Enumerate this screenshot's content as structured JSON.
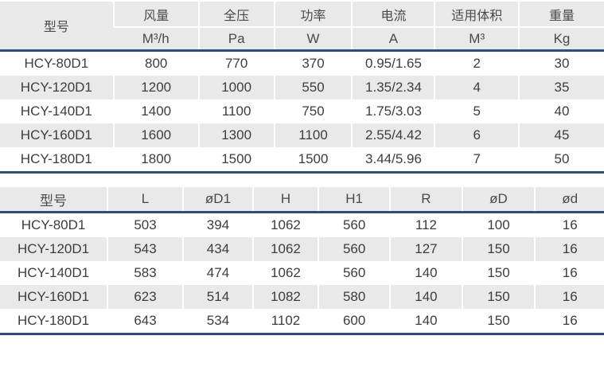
{
  "theme": {
    "accent_line_color": "#2c4e78",
    "header_background": "#e9e9e9",
    "stripe_background": "#e9e9e9",
    "text_color": "#3d3d3d"
  },
  "performance_table": {
    "columns": [
      {
        "label": "型号",
        "unit": null
      },
      {
        "label": "风量",
        "unit": "M³/h"
      },
      {
        "label": "全压",
        "unit": "Pa"
      },
      {
        "label": "功率",
        "unit": "W"
      },
      {
        "label": "电流",
        "unit": "A"
      },
      {
        "label": "适用体积",
        "unit": "M³"
      },
      {
        "label": "重量",
        "unit": "Kg"
      }
    ],
    "rows": [
      [
        "HCY-80D1",
        "800",
        "770",
        "370",
        "0.95/1.65",
        "2",
        "30"
      ],
      [
        "HCY-120D1",
        "1200",
        "1000",
        "550",
        "1.35/2.34",
        "4",
        "35"
      ],
      [
        "HCY-140D1",
        "1400",
        "1100",
        "750",
        "1.75/3.03",
        "5",
        "40"
      ],
      [
        "HCY-160D1",
        "1600",
        "1300",
        "1100",
        "2.55/4.42",
        "6",
        "45"
      ],
      [
        "HCY-180D1",
        "1800",
        "1500",
        "1500",
        "3.44/5.96",
        "7",
        "50"
      ]
    ]
  },
  "dimension_table": {
    "columns": [
      "型号",
      "L",
      "øD1",
      "H",
      "H1",
      "R",
      "øD",
      "ød"
    ],
    "rows": [
      [
        "HCY-80D1",
        "503",
        "394",
        "1062",
        "560",
        "112",
        "100",
        "16"
      ],
      [
        "HCY-120D1",
        "543",
        "434",
        "1062",
        "560",
        "127",
        "150",
        "16"
      ],
      [
        "HCY-140D1",
        "583",
        "474",
        "1062",
        "560",
        "140",
        "150",
        "16"
      ],
      [
        "HCY-160D1",
        "623",
        "514",
        "1082",
        "580",
        "140",
        "150",
        "16"
      ],
      [
        "HCY-180D1",
        "643",
        "534",
        "1102",
        "600",
        "140",
        "150",
        "16"
      ]
    ]
  }
}
